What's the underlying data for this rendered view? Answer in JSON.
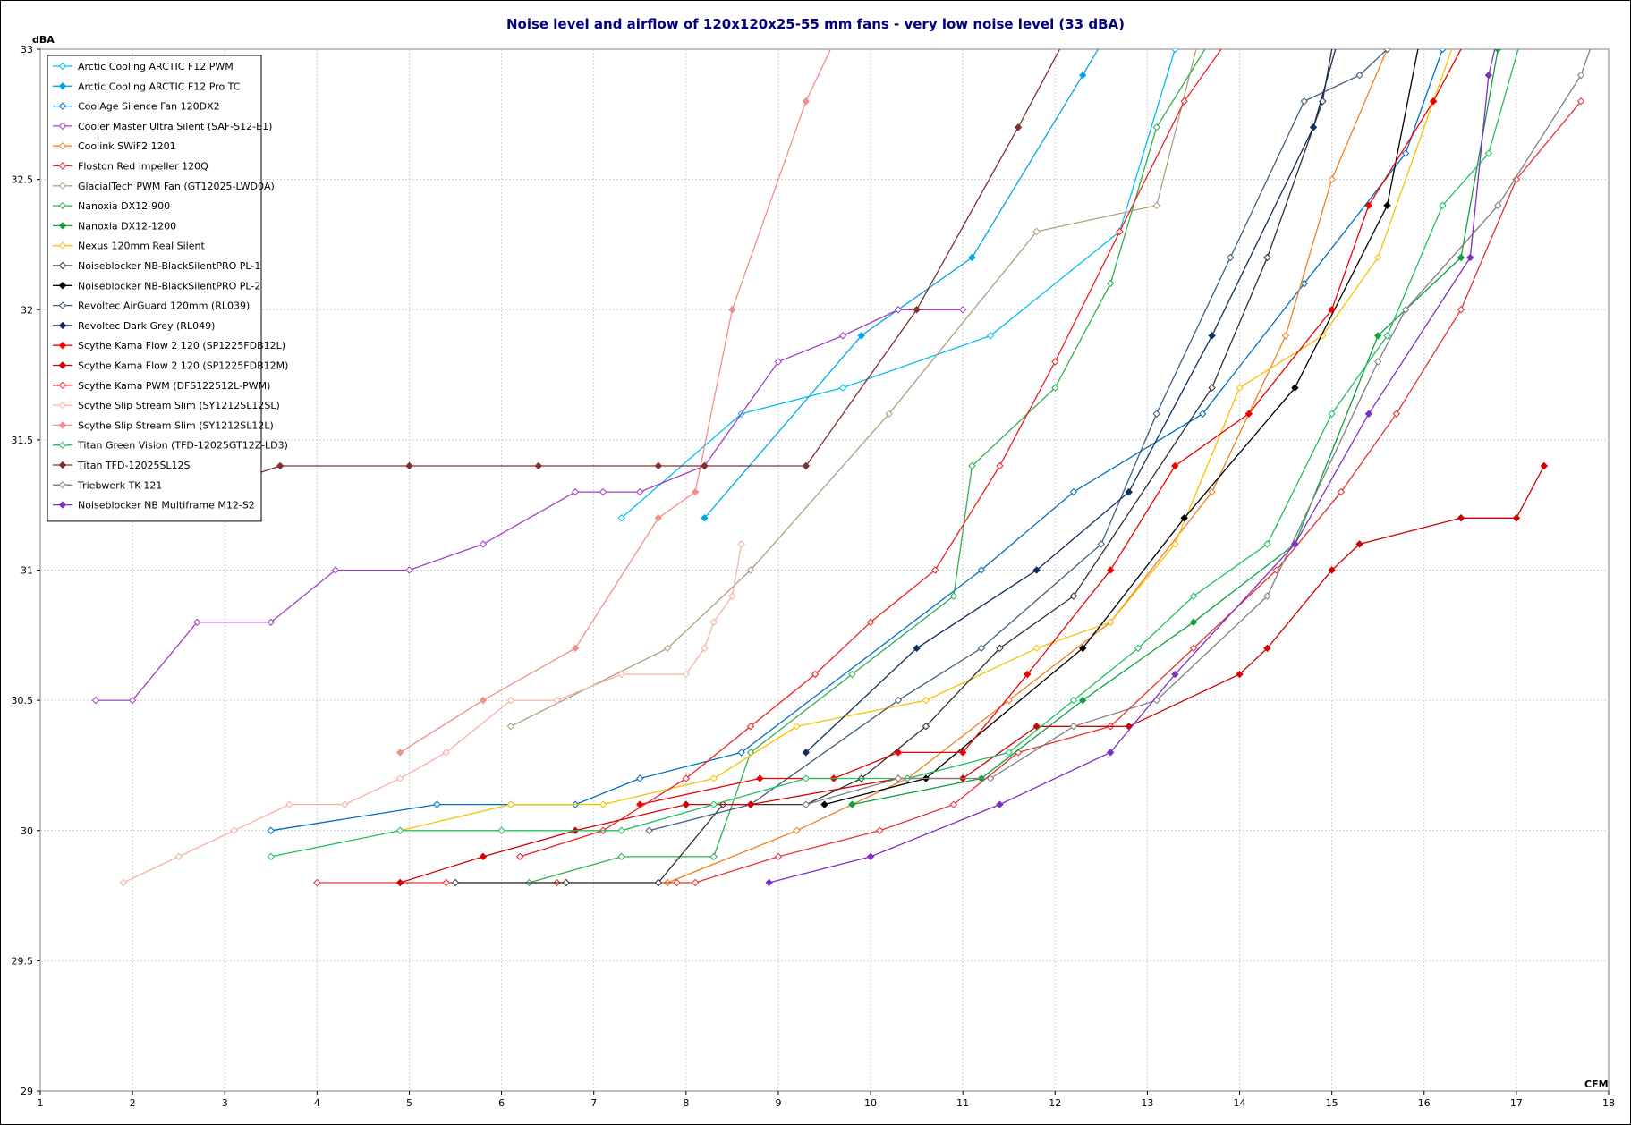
{
  "chart_data": {
    "type": "line",
    "title": "Noise  level  and  airflow  of  120x120x25-55 mm  fans - very low noise level (33 dBA)",
    "xlabel": "CFM",
    "ylabel": "dBA",
    "xlim": [
      1,
      18
    ],
    "ylim": [
      29,
      33
    ],
    "xticks": [
      1,
      2,
      3,
      4,
      5,
      6,
      7,
      8,
      9,
      10,
      11,
      12,
      13,
      14,
      15,
      16,
      17,
      18
    ],
    "yticks": [
      29,
      29.5,
      30,
      30.5,
      31,
      31.5,
      32,
      32.5,
      33
    ],
    "grid": true,
    "legend_position": "top-left",
    "series": [
      {
        "name": "Arctic Cooling ARCTIC F12 PWM",
        "color": "#00c0f0",
        "marker": "open-diamond",
        "x": [
          7.3,
          8.6,
          9.7,
          11.3,
          12.7,
          13.3
        ],
        "y": [
          31.2,
          31.6,
          31.7,
          31.9,
          32.3,
          33.0
        ]
      },
      {
        "name": "Arctic Cooling ARCTIC F12 Pro TC",
        "color": "#00a8e8",
        "marker": "filled-diamond",
        "x": [
          8.2,
          9.9,
          11.1,
          12.3,
          12.8
        ],
        "y": [
          31.2,
          31.9,
          32.2,
          32.9,
          33.2
        ]
      },
      {
        "name": "CoolAge Silence Fan 120DX2",
        "color": "#0070c0",
        "marker": "open-diamond",
        "x": [
          3.5,
          5.3,
          6.1,
          6.8,
          7.5,
          8.6,
          11.2,
          12.2,
          13.6,
          14.7,
          15.8,
          16.2
        ],
        "y": [
          30.0,
          30.1,
          30.1,
          30.1,
          30.2,
          30.3,
          31.0,
          31.3,
          31.6,
          32.1,
          32.6,
          33.0
        ]
      },
      {
        "name": "Cooler Master Ultra Silent (SAF-S12-E1)",
        "color": "#a040c0",
        "marker": "open-diamond",
        "x": [
          1.6,
          2.0,
          2.7,
          3.5,
          4.2,
          5.0,
          5.8,
          6.8,
          7.1,
          7.5,
          8.2,
          9.0,
          9.7,
          10.3,
          11.0
        ],
        "y": [
          30.5,
          30.5,
          30.8,
          30.8,
          31.0,
          31.0,
          31.1,
          31.3,
          31.3,
          31.3,
          31.4,
          31.8,
          31.9,
          32.0,
          32.0
        ]
      },
      {
        "name": "Coolink SWiF2 1201",
        "color": "#f08020",
        "marker": "open-diamond",
        "x": [
          7.8,
          9.2,
          10.4,
          11.5,
          12.6,
          13.7,
          14.5,
          15.0,
          15.6,
          15.9
        ],
        "y": [
          29.8,
          30.0,
          30.2,
          30.5,
          30.8,
          31.3,
          31.9,
          32.5,
          33.0,
          33.2
        ]
      },
      {
        "name": "Floston Red impeller 120Q",
        "color": "#e83030",
        "marker": "open-diamond",
        "x": [
          4.0,
          5.4,
          6.6,
          7.9,
          8.1,
          9.0,
          10.1,
          10.9,
          11.6,
          12.6,
          13.5,
          14.4,
          15.1,
          15.7,
          16.4,
          17.0,
          17.7
        ],
        "y": [
          29.8,
          29.8,
          29.8,
          29.8,
          29.8,
          29.9,
          30.0,
          30.1,
          30.3,
          30.4,
          30.7,
          31.0,
          31.3,
          31.6,
          32.0,
          32.5,
          32.8
        ]
      },
      {
        "name": "GlacialTech PWM Fan (GT12025-LWD0A)",
        "color": "#b0a080",
        "marker": "open-diamond",
        "x": [
          6.1,
          7.8,
          8.7,
          10.2,
          11.8,
          13.1,
          13.6
        ],
        "y": [
          30.4,
          30.7,
          31.0,
          31.6,
          32.3,
          32.4,
          33.1
        ]
      },
      {
        "name": "Nanoxia DX12-900",
        "color": "#30b050",
        "marker": "open-diamond",
        "x": [
          6.3,
          7.3,
          8.3,
          8.7,
          9.8,
          10.9,
          11.1,
          12.0,
          12.6,
          13.1,
          13.8
        ],
        "y": [
          29.8,
          29.9,
          29.9,
          30.3,
          30.6,
          30.9,
          31.4,
          31.7,
          32.1,
          32.7,
          33.1
        ]
      },
      {
        "name": "Nanoxia DX12-1200",
        "color": "#10a040",
        "marker": "filled-diamond",
        "x": [
          9.8,
          11.2,
          12.3,
          13.5,
          14.6,
          15.5,
          16.4,
          16.8
        ],
        "y": [
          30.1,
          30.2,
          30.5,
          30.8,
          31.1,
          31.9,
          32.2,
          33.0
        ]
      },
      {
        "name": "Nexus 120mm Real Silent",
        "color": "#f8c000",
        "marker": "open-diamond",
        "x": [
          4.9,
          6.1,
          7.1,
          8.3,
          9.2,
          10.6,
          11.8,
          12.6,
          13.3,
          14.0,
          14.9,
          15.5,
          16.1,
          16.4
        ],
        "y": [
          30.0,
          30.1,
          30.1,
          30.2,
          30.4,
          30.5,
          30.7,
          30.8,
          31.1,
          31.7,
          31.9,
          32.2,
          32.8,
          33.1
        ]
      },
      {
        "name": "Noiseblocker NB-BlackSilentPRO PL-1",
        "color": "#303030",
        "marker": "open-diamond",
        "x": [
          5.5,
          6.7,
          7.7,
          8.4,
          9.3,
          9.9,
          10.6,
          11.4,
          12.2,
          13.7,
          14.3,
          14.9,
          15.1
        ],
        "y": [
          29.8,
          29.8,
          29.8,
          30.1,
          30.1,
          30.2,
          30.4,
          30.7,
          30.9,
          31.7,
          32.2,
          32.8,
          33.2
        ]
      },
      {
        "name": "Noiseblocker NB-BlackSilentPRO PL-2",
        "color": "#000000",
        "marker": "filled-diamond",
        "x": [
          9.5,
          10.6,
          12.3,
          13.4,
          14.6,
          15.6,
          16.1
        ],
        "y": [
          30.1,
          30.2,
          30.7,
          31.2,
          31.7,
          32.4,
          33.3
        ]
      },
      {
        "name": "Revoltec AirGuard 120mm (RL039)",
        "color": "#406080",
        "marker": "open-diamond",
        "x": [
          7.6,
          8.7,
          10.3,
          11.2,
          12.5,
          13.1,
          13.9,
          14.7,
          15.3,
          15.6
        ],
        "y": [
          30.0,
          30.1,
          30.5,
          30.7,
          31.1,
          31.6,
          32.2,
          32.8,
          32.9,
          33.0
        ]
      },
      {
        "name": "Revoltec Dark Grey (RL049)",
        "color": "#103060",
        "marker": "filled-diamond",
        "x": [
          9.3,
          10.5,
          11.8,
          12.8,
          13.7,
          14.8,
          15.2
        ],
        "y": [
          30.3,
          30.7,
          31.0,
          31.3,
          31.9,
          32.7,
          33.2
        ]
      },
      {
        "name": "Scythe Kama Flow 2 120 (SP1225FDB12L)",
        "color": "#f00000",
        "marker": "filled-diamond",
        "x": [
          7.5,
          8.8,
          9.6,
          10.3,
          11.0,
          11.7,
          12.6,
          13.3,
          14.1,
          15.0,
          15.4,
          16.1,
          16.7
        ],
        "y": [
          30.1,
          30.2,
          30.2,
          30.3,
          30.3,
          30.6,
          31.0,
          31.4,
          31.6,
          32.0,
          32.4,
          32.8,
          33.2
        ]
      },
      {
        "name": "Scythe Kama Flow 2 120 (SP1225FDB12M)",
        "color": "#d00000",
        "marker": "filled-diamond",
        "x": [
          4.9,
          5.8,
          6.8,
          8.0,
          8.7,
          10.3,
          11.0,
          11.8,
          12.8,
          14.0,
          14.3,
          15.0,
          15.3,
          16.4,
          17.0,
          17.3
        ],
        "y": [
          29.8,
          29.9,
          30.0,
          30.1,
          30.1,
          30.2,
          30.2,
          30.4,
          30.4,
          30.6,
          30.7,
          31.0,
          31.1,
          31.2,
          31.2,
          31.4
        ]
      },
      {
        "name": "Scythe Kama PWM (DFS122512L-PWM)",
        "color": "#f02020",
        "marker": "open-diamond",
        "x": [
          6.2,
          7.1,
          8.0,
          8.7,
          9.4,
          10.0,
          10.7,
          11.4,
          12.0,
          12.7,
          13.4,
          14.0
        ],
        "y": [
          29.9,
          30.0,
          30.2,
          30.4,
          30.6,
          30.8,
          31.0,
          31.4,
          31.8,
          32.3,
          32.8,
          33.1
        ]
      },
      {
        "name": "Scythe Slip Stream Slim (SY1212SL12SL)",
        "color": "#f8b0a8",
        "marker": "open-diamond",
        "x": [
          1.9,
          2.5,
          3.1,
          3.7,
          4.3,
          4.9,
          5.4,
          6.1,
          6.6,
          7.3,
          8.0,
          8.2,
          8.3,
          8.5,
          8.6
        ],
        "y": [
          29.8,
          29.9,
          30.0,
          30.1,
          30.1,
          30.2,
          30.3,
          30.5,
          30.5,
          30.6,
          30.6,
          30.7,
          30.8,
          30.9,
          31.1
        ]
      },
      {
        "name": "Scythe Slip Stream Slim (SY1212SL12L)",
        "color": "#f09088",
        "marker": "filled-diamond",
        "x": [
          4.9,
          5.8,
          6.8,
          7.7,
          8.1,
          8.5,
          9.3,
          9.7
        ],
        "y": [
          30.3,
          30.5,
          30.7,
          31.2,
          31.3,
          32.0,
          32.8,
          33.1
        ]
      },
      {
        "name": "Titan Green Vision (TFD-12025GT12Z-LD3)",
        "color": "#20c060",
        "marker": "open-diamond",
        "x": [
          3.5,
          4.9,
          6.0,
          7.3,
          8.3,
          9.3,
          10.4,
          11.5,
          12.2,
          12.9,
          13.5,
          14.3,
          15.0,
          15.6,
          16.2,
          16.7,
          17.1
        ],
        "y": [
          29.9,
          30.0,
          30.0,
          30.0,
          30.1,
          30.2,
          30.2,
          30.3,
          30.5,
          30.7,
          30.9,
          31.1,
          31.6,
          31.9,
          32.4,
          32.6,
          33.1
        ]
      },
      {
        "name": "Titan TFD-12025SL12S",
        "color": "#803030",
        "marker": "filled-diamond",
        "x": [
          1.9,
          3.6,
          5.0,
          6.4,
          7.7,
          8.2,
          9.3,
          10.5,
          11.6,
          12.2
        ],
        "y": [
          31.2,
          31.4,
          31.4,
          31.4,
          31.4,
          31.4,
          31.4,
          32.0,
          32.7,
          33.1
        ]
      },
      {
        "name": "Triebwerk TK-121",
        "color": "#808080",
        "marker": "open-diamond",
        "x": [
          9.3,
          10.3,
          11.3,
          12.2,
          13.1,
          14.3,
          15.5,
          15.8,
          16.8,
          17.7,
          17.9
        ],
        "y": [
          30.1,
          30.2,
          30.2,
          30.4,
          30.5,
          30.9,
          31.8,
          32.0,
          32.4,
          32.9,
          33.1
        ]
      },
      {
        "name": "Noiseblocker NB Multiframe M12-S2",
        "color": "#8030c0",
        "marker": "filled-diamond",
        "x": [
          8.9,
          10.0,
          11.4,
          12.6,
          13.3,
          14.6,
          15.4,
          16.5,
          16.7,
          16.9
        ],
        "y": [
          29.8,
          29.9,
          30.1,
          30.3,
          30.6,
          31.1,
          31.6,
          32.2,
          32.9,
          33.2
        ]
      }
    ]
  }
}
